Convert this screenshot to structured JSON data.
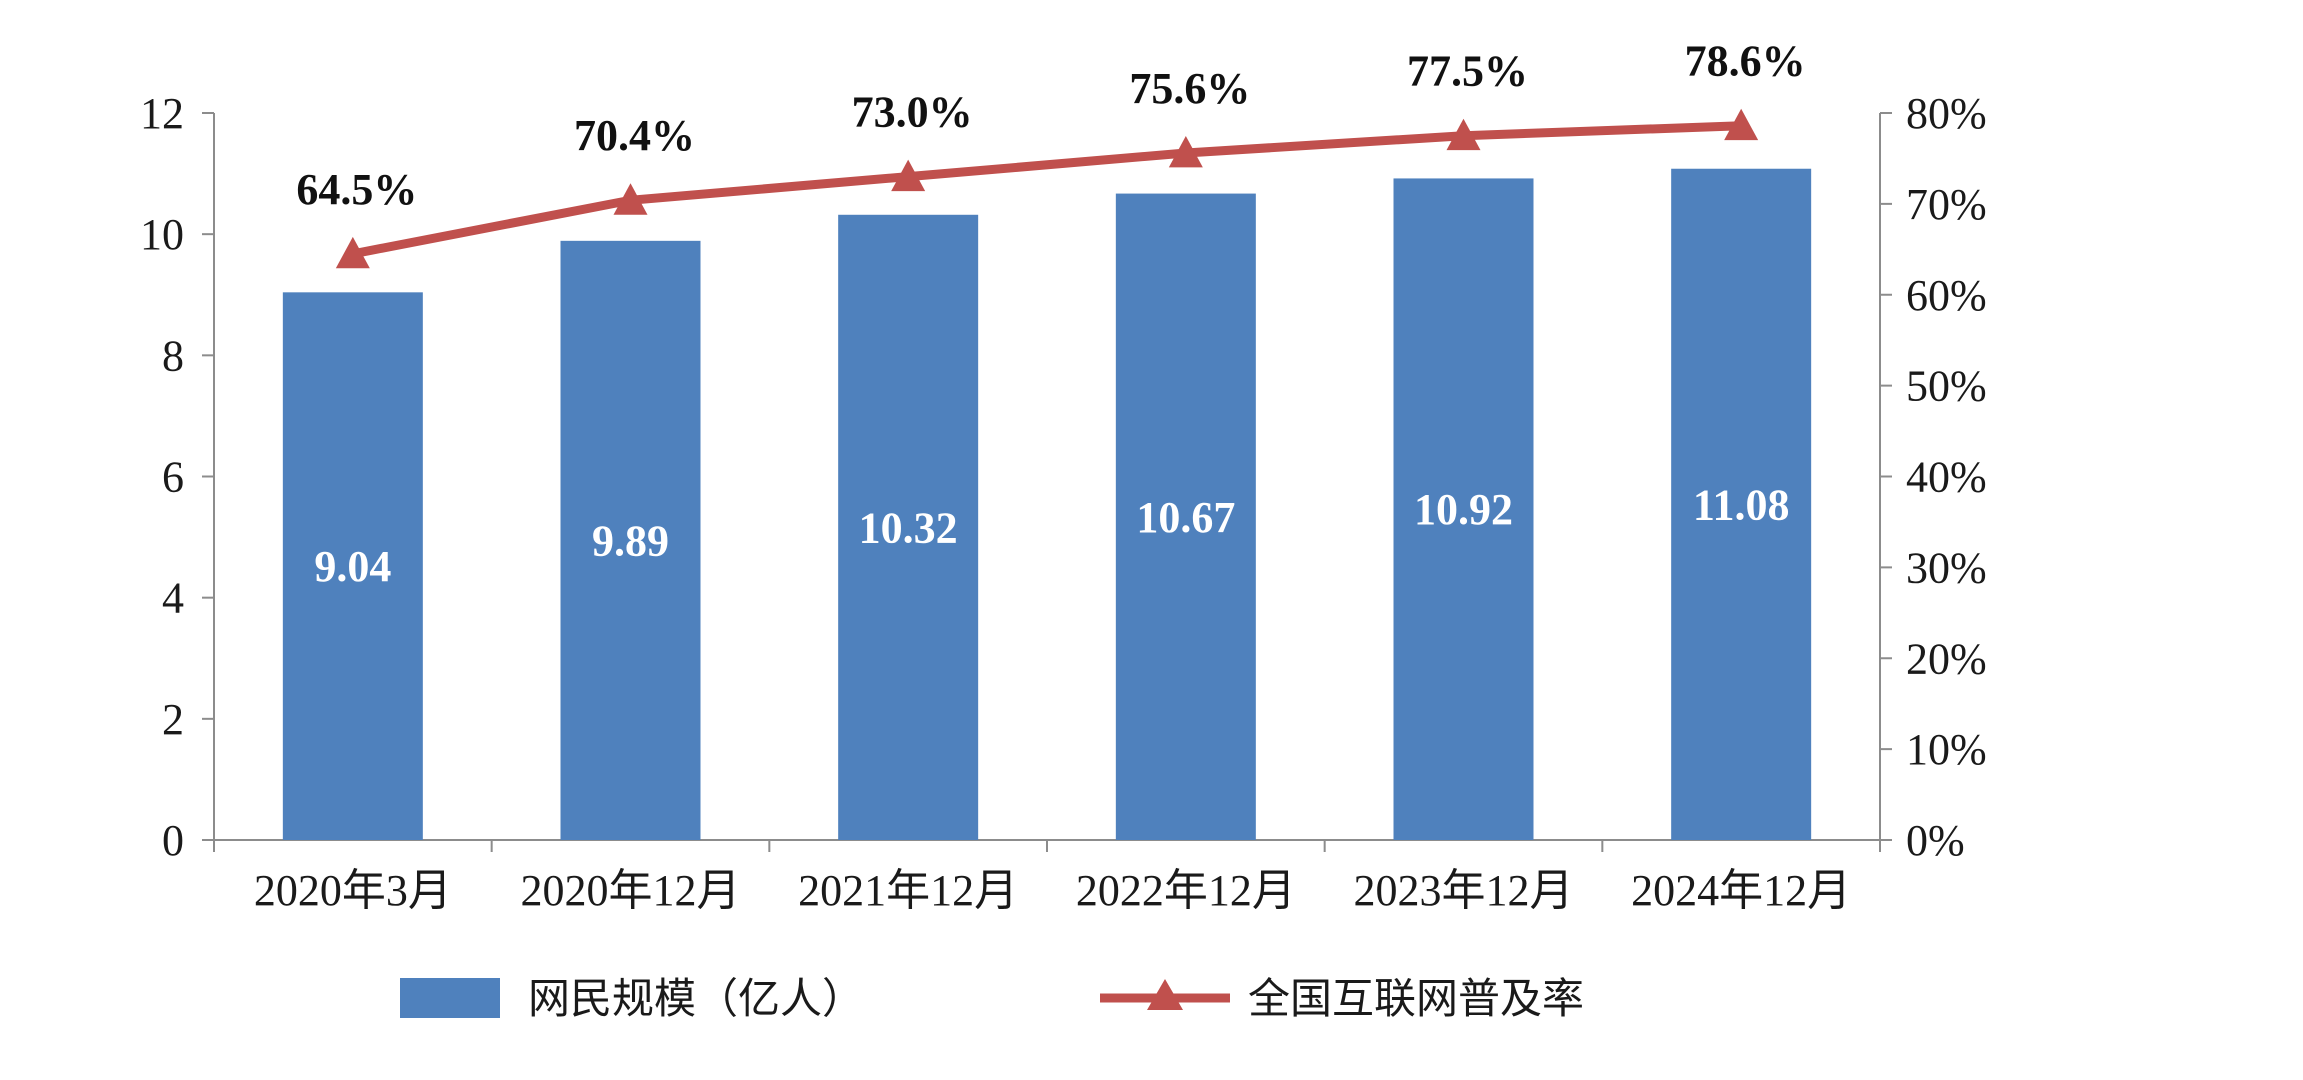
{
  "chart_data": {
    "type": "bar",
    "categories": [
      "2020年3月",
      "2020年12月",
      "2021年12月",
      "2022年12月",
      "2023年12月",
      "2024年12月"
    ],
    "series": [
      {
        "name": "网民规模（亿人）",
        "type": "bar",
        "axis": "left",
        "values": [
          9.04,
          9.89,
          10.32,
          10.67,
          10.92,
          11.08
        ],
        "labels": [
          "9.04",
          "9.89",
          "10.32",
          "10.67",
          "10.92",
          "11.08"
        ],
        "color": "#4f81bd"
      },
      {
        "name": "全国互联网普及率",
        "type": "line",
        "axis": "right",
        "marker": "triangle",
        "values": [
          64.5,
          70.4,
          73.0,
          75.6,
          77.5,
          78.6
        ],
        "labels": [
          "64.5%",
          "70.4%",
          "73.0%",
          "75.6%",
          "77.5%",
          "78.6%"
        ],
        "color": "#c0504d"
      }
    ],
    "y_left": {
      "ylim": [
        0,
        12
      ],
      "ticks": [
        0,
        2,
        4,
        6,
        8,
        10,
        12
      ],
      "tick_labels": [
        "0",
        "2",
        "4",
        "6",
        "8",
        "10",
        "12"
      ]
    },
    "y_right": {
      "ylim": [
        0,
        80
      ],
      "ticks": [
        0,
        10,
        20,
        30,
        40,
        50,
        60,
        70,
        80
      ],
      "tick_labels": [
        "0%",
        "10%",
        "20%",
        "30%",
        "40%",
        "50%",
        "60%",
        "70%",
        "80%"
      ]
    },
    "title": "",
    "xlabel": "",
    "ylabel": "",
    "grid": false,
    "legend": {
      "position": "bottom",
      "entries": [
        "网民规模（亿人）",
        "全国互联网普及率"
      ]
    }
  }
}
